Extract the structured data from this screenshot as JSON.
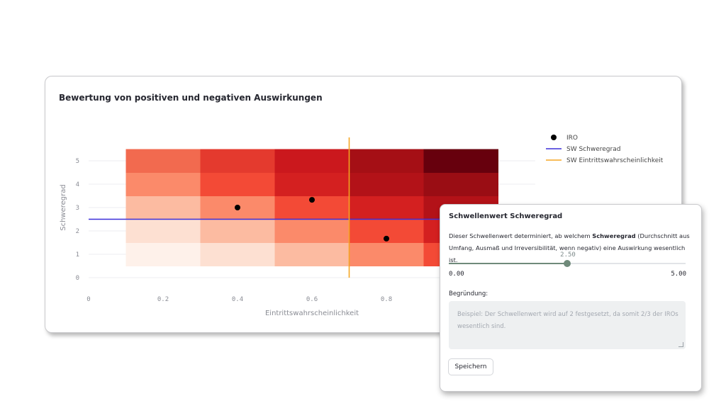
{
  "chart_data": {
    "type": "heatmap",
    "title": "Bewertung von positiven und negativen Auswirkungen",
    "xlabel": "Eintrittswahrscheinlichkeit",
    "ylabel": "Schweregrad",
    "xlim": [
      0,
      1.2
    ],
    "ylim": [
      0,
      5
    ],
    "x_ticks": [
      0,
      0.2,
      0.4,
      0.6,
      0.8
    ],
    "x_tick_labels": [
      "0",
      "0.2",
      "0.4",
      "0.6",
      "0.8"
    ],
    "y_ticks": [
      0,
      1,
      2,
      3,
      4,
      5
    ],
    "y_tick_labels": [
      "0",
      "1",
      "2",
      "3",
      "4",
      "5"
    ],
    "grid": true,
    "heatmap": {
      "x_edges": [
        0.1,
        0.3,
        0.5,
        0.7,
        0.9,
        1.1
      ],
      "y_edges": [
        0.5,
        1.5,
        2.5,
        3.5,
        4.5,
        5.5
      ],
      "colors": [
        [
          "#fef1ea",
          "#fde0d2",
          "#fcbba1",
          "#fb8a6a",
          "#f34a36"
        ],
        [
          "#fde0d2",
          "#fcbba1",
          "#fb8a6a",
          "#f34a36",
          "#d42020"
        ],
        [
          "#fcbba1",
          "#fb8a6a",
          "#f34a36",
          "#d42020",
          "#b31218"
        ],
        [
          "#fb8a6a",
          "#f34a36",
          "#d42020",
          "#b31218",
          "#9a0d14"
        ],
        [
          "#f26a4f",
          "#e43a2e",
          "#cb181d",
          "#a50f15",
          "#67000d"
        ]
      ]
    },
    "series": [
      {
        "name": "IRO",
        "type": "scatter",
        "color": "#000000",
        "x": [
          0.4,
          0.6,
          0.8
        ],
        "y": [
          3.0,
          3.33,
          1.67
        ]
      },
      {
        "name": "SW Schweregrad",
        "type": "hline",
        "color": "#3b2fd9",
        "y": 2.5
      },
      {
        "name": "SW Eintrittswahrscheinlichkeit",
        "type": "vline",
        "color": "#f5a623",
        "x": 0.7
      }
    ],
    "legend_position": "top-right"
  },
  "panel": {
    "title": "Schwellenwert Schweregrad",
    "description_before": "Dieser Schwellenwert determiniert, ab welchem ",
    "description_bold": "Schweregrad",
    "description_after": " (Durchschnitt aus Umfang, Ausmaß und Irreversibilität, wenn negativ) eine Auswirkung wesentlich ist.",
    "slider": {
      "value": 2.5,
      "value_label": "2.50",
      "min": 0,
      "max": 5,
      "min_label": "0.00",
      "max_label": "5.00",
      "color": "#6f8a7a"
    },
    "reason_label": "Begründung:",
    "reason_placeholder": "Beispiel: Der Schwellenwert wird auf 2 festgesetzt, da somit 2/3 der IROs wesentlich sind.",
    "save_label": "Speichern"
  }
}
